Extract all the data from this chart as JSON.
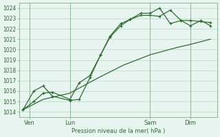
{
  "bg_color": "#e8f4f0",
  "plot_bg": "#e8f4f0",
  "line_color": "#2d6a2d",
  "grid_color": "#b8d8cc",
  "xlabel": "Pression niveau de la mer( hPa )",
  "ylim": [
    1013.5,
    1024.5
  ],
  "yticks": [
    1014,
    1015,
    1016,
    1017,
    1018,
    1019,
    1020,
    1021,
    1022,
    1023,
    1024
  ],
  "xlim": [
    -0.3,
    14.5
  ],
  "xtick_positions": [
    0.5,
    3.5,
    9.5,
    12.5
  ],
  "xtick_labels": [
    "Ven",
    "Lun",
    "Sam",
    "Dim"
  ],
  "vline_positions": [
    0.5,
    3.5,
    9.5,
    12.5
  ],
  "line1_x": [
    0.0,
    0.8,
    1.5,
    2.2,
    3.5,
    4.2,
    5.0,
    5.8,
    6.5,
    7.3,
    8.0,
    8.8,
    9.5,
    10.2,
    11.0,
    11.8,
    12.5,
    13.3,
    14.0
  ],
  "line1_y": [
    1014.2,
    1015.0,
    1015.8,
    1015.9,
    1015.2,
    1016.8,
    1017.5,
    1019.5,
    1021.2,
    1022.3,
    1022.9,
    1023.3,
    1023.3,
    1023.2,
    1023.8,
    1022.8,
    1022.8,
    1022.7,
    1022.6
  ],
  "line2_x": [
    0.0,
    0.8,
    1.5,
    2.2,
    3.5,
    4.2,
    5.0,
    5.8,
    6.5,
    7.3,
    8.0,
    8.8,
    9.5,
    10.2,
    11.0,
    11.8,
    12.5,
    13.3,
    14.0
  ],
  "line2_y": [
    1014.2,
    1016.0,
    1016.5,
    1015.5,
    1015.1,
    1015.2,
    1017.3,
    1019.5,
    1021.3,
    1022.5,
    1022.9,
    1023.5,
    1023.5,
    1024.0,
    1022.5,
    1022.8,
    1022.3,
    1022.8,
    1022.3
  ],
  "line3_x": [
    0.0,
    1.5,
    3.5,
    5.5,
    7.5,
    9.5,
    11.5,
    12.5,
    14.0
  ],
  "line3_y": [
    1014.2,
    1015.2,
    1015.8,
    1017.2,
    1018.5,
    1019.5,
    1020.2,
    1020.5,
    1021.0
  ]
}
